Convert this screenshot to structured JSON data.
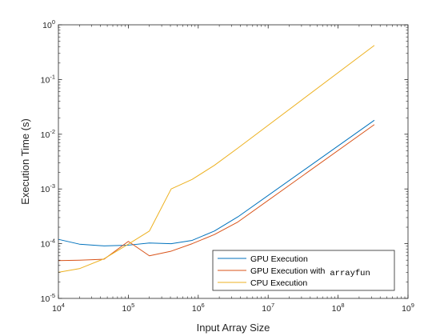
{
  "chart_data": {
    "type": "line",
    "title": "",
    "xlabel": "Input Array Size",
    "ylabel": "Execution Time (s)",
    "xscale": "log",
    "yscale": "log",
    "xlim": [
      10000,
      1000000000
    ],
    "ylim": [
      1e-05,
      1
    ],
    "grid": false,
    "legend_position": "bottom-right",
    "x_ticks": [
      {
        "value": 10000,
        "base": "10",
        "exp": "4"
      },
      {
        "value": 100000,
        "base": "10",
        "exp": "5"
      },
      {
        "value": 1000000,
        "base": "10",
        "exp": "6"
      },
      {
        "value": 10000000,
        "base": "10",
        "exp": "7"
      },
      {
        "value": 100000000,
        "base": "10",
        "exp": "8"
      },
      {
        "value": 1000000000,
        "base": "10",
        "exp": "9"
      }
    ],
    "y_ticks": [
      {
        "value": 1e-05,
        "base": "10",
        "exp": "-5"
      },
      {
        "value": 0.0001,
        "base": "10",
        "exp": "-4"
      },
      {
        "value": 0.001,
        "base": "10",
        "exp": "-3"
      },
      {
        "value": 0.01,
        "base": "10",
        "exp": "-2"
      },
      {
        "value": 0.1,
        "base": "10",
        "exp": "-1"
      },
      {
        "value": 1,
        "base": "10",
        "exp": "0"
      }
    ],
    "series": [
      {
        "name": "GPU Execution",
        "color": "#0072BD",
        "x": [
          10000,
          20000,
          45000,
          100000,
          200000,
          410000,
          820000,
          1700000,
          3700000,
          330000000
        ],
        "y": [
          0.00012,
          9.8e-05,
          9.1e-05,
          9.4e-05,
          0.000103,
          0.0001,
          0.000115,
          0.00017,
          0.00031,
          0.018
        ]
      },
      {
        "name_prefix": "GPU Execution with",
        "name_code": "arrayfun",
        "color": "#D95319",
        "x": [
          10000,
          20000,
          45000,
          100000,
          200000,
          410000,
          820000,
          1700000,
          3700000,
          330000000
        ],
        "y": [
          4.9e-05,
          5e-05,
          5.2e-05,
          0.00011,
          6e-05,
          7.3e-05,
          0.0001,
          0.000147,
          0.00025,
          0.015
        ]
      },
      {
        "name": "CPU Execution",
        "color": "#EDB120",
        "x": [
          10000,
          20000,
          45000,
          100000,
          200000,
          410000,
          820000,
          1700000,
          3700000,
          330000000
        ],
        "y": [
          3e-05,
          3.5e-05,
          5.3e-05,
          9.8e-05,
          0.00017,
          0.001,
          0.0015,
          0.0027,
          0.0056,
          0.42
        ]
      }
    ]
  }
}
